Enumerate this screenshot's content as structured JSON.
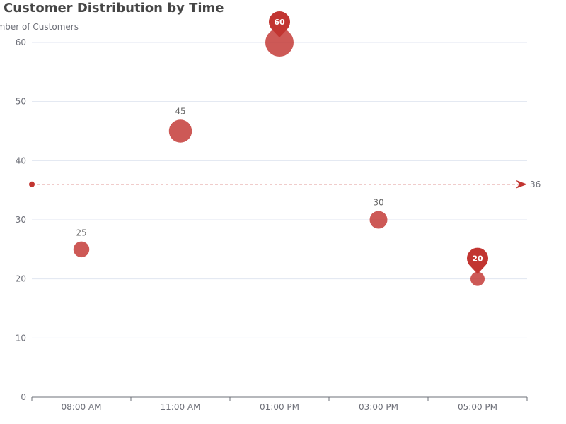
{
  "chart_data": {
    "type": "scatter",
    "title": "Customer Distribution by Time",
    "ylabel": "Number of Customers",
    "categories": [
      "08:00 AM",
      "11:00 AM",
      "01:00 PM",
      "03:00 PM",
      "05:00 PM"
    ],
    "values": [
      25,
      45,
      60,
      30,
      20
    ],
    "ylim": [
      0,
      60
    ],
    "y_ticks": [
      0,
      10,
      20,
      30,
      40,
      50,
      60
    ],
    "grid": true,
    "mark_points": [
      {
        "label": "60",
        "category": "01:00 PM",
        "value": 60
      },
      {
        "label": "20",
        "category": "05:00 PM",
        "value": 20
      }
    ],
    "mark_line": {
      "label": "36",
      "value": 36
    },
    "colors": {
      "point": "#c23531",
      "text": "#6e7079",
      "title": "#464646",
      "grid": "#e0e6f1",
      "axis": "#6e7079"
    }
  }
}
